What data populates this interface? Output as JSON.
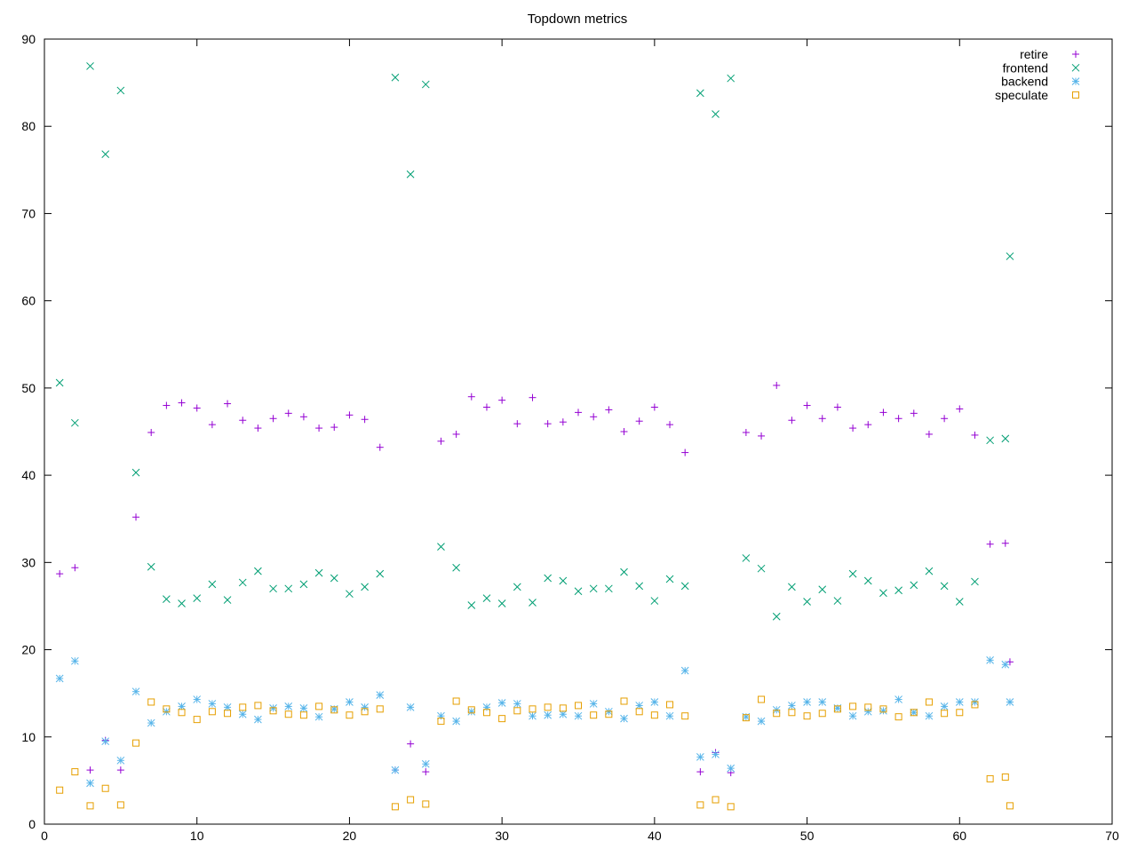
{
  "chart_data": {
    "type": "scatter",
    "title": "Topdown metrics",
    "xlabel": "",
    "ylabel": "",
    "xlim": [
      0,
      70
    ],
    "ylim": [
      0,
      90
    ],
    "xticks": [
      0,
      10,
      20,
      30,
      40,
      50,
      60,
      70
    ],
    "yticks": [
      0,
      10,
      20,
      30,
      40,
      50,
      60,
      70,
      80,
      90
    ],
    "grid": false,
    "legend_position": "top-right",
    "series": [
      {
        "name": "retire",
        "color": "#9400d3",
        "marker": "plus",
        "points": [
          [
            1,
            28.7
          ],
          [
            2,
            29.4
          ],
          [
            3,
            6.2
          ],
          [
            4,
            9.6
          ],
          [
            5,
            6.2
          ],
          [
            6,
            35.2
          ],
          [
            7,
            44.9
          ],
          [
            8,
            48.0
          ],
          [
            9,
            48.3
          ],
          [
            10,
            47.7
          ],
          [
            11,
            45.8
          ],
          [
            12,
            48.2
          ],
          [
            13,
            46.3
          ],
          [
            14,
            45.4
          ],
          [
            15,
            46.5
          ],
          [
            16,
            47.1
          ],
          [
            17,
            46.7
          ],
          [
            18,
            45.4
          ],
          [
            19,
            45.5
          ],
          [
            20,
            46.9
          ],
          [
            21,
            46.4
          ],
          [
            22,
            43.2
          ],
          [
            23,
            6.2
          ],
          [
            24,
            9.2
          ],
          [
            25,
            6.0
          ],
          [
            26,
            43.9
          ],
          [
            27,
            44.7
          ],
          [
            28,
            49.0
          ],
          [
            29,
            47.8
          ],
          [
            30,
            48.6
          ],
          [
            31,
            45.9
          ],
          [
            32,
            48.9
          ],
          [
            33,
            45.9
          ],
          [
            34,
            46.1
          ],
          [
            35,
            47.2
          ],
          [
            36,
            46.7
          ],
          [
            37,
            47.5
          ],
          [
            38,
            45.0
          ],
          [
            39,
            46.2
          ],
          [
            40,
            47.8
          ],
          [
            41,
            45.8
          ],
          [
            42,
            42.6
          ],
          [
            43,
            6.0
          ],
          [
            44,
            8.2
          ],
          [
            45,
            5.9
          ],
          [
            46,
            44.9
          ],
          [
            47,
            44.5
          ],
          [
            48,
            50.3
          ],
          [
            49,
            46.3
          ],
          [
            50,
            48.0
          ],
          [
            51,
            46.5
          ],
          [
            52,
            47.8
          ],
          [
            53,
            45.4
          ],
          [
            54,
            45.8
          ],
          [
            55,
            47.2
          ],
          [
            56,
            46.5
          ],
          [
            57,
            47.1
          ],
          [
            58,
            44.7
          ],
          [
            59,
            46.5
          ],
          [
            60,
            47.6
          ],
          [
            61,
            44.6
          ],
          [
            62,
            32.1
          ],
          [
            63,
            32.2
          ],
          [
            63.3,
            18.6
          ]
        ]
      },
      {
        "name": "frontend",
        "color": "#009e73",
        "marker": "cross",
        "points": [
          [
            1,
            50.6
          ],
          [
            2,
            46.0
          ],
          [
            3,
            86.9
          ],
          [
            4,
            76.8
          ],
          [
            5,
            84.1
          ],
          [
            6,
            40.3
          ],
          [
            7,
            29.5
          ],
          [
            8,
            25.8
          ],
          [
            9,
            25.3
          ],
          [
            10,
            25.9
          ],
          [
            11,
            27.5
          ],
          [
            12,
            25.7
          ],
          [
            13,
            27.7
          ],
          [
            14,
            29.0
          ],
          [
            15,
            27.0
          ],
          [
            16,
            27.0
          ],
          [
            17,
            27.5
          ],
          [
            18,
            28.8
          ],
          [
            19,
            28.2
          ],
          [
            20,
            26.4
          ],
          [
            21,
            27.2
          ],
          [
            22,
            28.7
          ],
          [
            23,
            85.6
          ],
          [
            24,
            74.5
          ],
          [
            25,
            84.8
          ],
          [
            26,
            31.8
          ],
          [
            27,
            29.4
          ],
          [
            28,
            25.1
          ],
          [
            29,
            25.9
          ],
          [
            30,
            25.3
          ],
          [
            31,
            27.2
          ],
          [
            32,
            25.4
          ],
          [
            33,
            28.2
          ],
          [
            34,
            27.9
          ],
          [
            35,
            26.7
          ],
          [
            36,
            27.0
          ],
          [
            37,
            27.0
          ],
          [
            38,
            28.9
          ],
          [
            39,
            27.3
          ],
          [
            40,
            25.6
          ],
          [
            41,
            28.1
          ],
          [
            42,
            27.3
          ],
          [
            43,
            83.8
          ],
          [
            44,
            81.4
          ],
          [
            45,
            85.5
          ],
          [
            46,
            30.5
          ],
          [
            47,
            29.3
          ],
          [
            48,
            23.8
          ],
          [
            49,
            27.2
          ],
          [
            50,
            25.5
          ],
          [
            51,
            26.9
          ],
          [
            52,
            25.6
          ],
          [
            53,
            28.7
          ],
          [
            54,
            27.9
          ],
          [
            55,
            26.5
          ],
          [
            56,
            26.8
          ],
          [
            57,
            27.4
          ],
          [
            58,
            29.0
          ],
          [
            59,
            27.3
          ],
          [
            60,
            25.5
          ],
          [
            61,
            27.8
          ],
          [
            62,
            44.0
          ],
          [
            63,
            44.2
          ],
          [
            63.3,
            65.1
          ]
        ]
      },
      {
        "name": "backend",
        "color": "#56b4e9",
        "marker": "star",
        "points": [
          [
            1,
            16.7
          ],
          [
            2,
            18.7
          ],
          [
            3,
            4.7
          ],
          [
            4,
            9.5
          ],
          [
            5,
            7.3
          ],
          [
            6,
            15.2
          ],
          [
            7,
            11.6
          ],
          [
            8,
            12.9
          ],
          [
            9,
            13.5
          ],
          [
            10,
            14.3
          ],
          [
            11,
            13.8
          ],
          [
            12,
            13.4
          ],
          [
            13,
            12.6
          ],
          [
            14,
            12.0
          ],
          [
            15,
            13.3
          ],
          [
            16,
            13.5
          ],
          [
            17,
            13.3
          ],
          [
            18,
            12.3
          ],
          [
            19,
            13.2
          ],
          [
            20,
            14.0
          ],
          [
            21,
            13.4
          ],
          [
            22,
            14.8
          ],
          [
            23,
            6.2
          ],
          [
            24,
            13.4
          ],
          [
            25,
            6.9
          ],
          [
            26,
            12.4
          ],
          [
            27,
            11.8
          ],
          [
            28,
            12.9
          ],
          [
            29,
            13.4
          ],
          [
            30,
            13.9
          ],
          [
            31,
            13.8
          ],
          [
            32,
            12.4
          ],
          [
            33,
            12.5
          ],
          [
            34,
            12.6
          ],
          [
            35,
            12.4
          ],
          [
            36,
            13.8
          ],
          [
            37,
            12.9
          ],
          [
            38,
            12.1
          ],
          [
            39,
            13.6
          ],
          [
            40,
            14.0
          ],
          [
            41,
            12.4
          ],
          [
            42,
            17.6
          ],
          [
            43,
            7.7
          ],
          [
            44,
            8.0
          ],
          [
            45,
            6.4
          ],
          [
            46,
            12.3
          ],
          [
            47,
            11.8
          ],
          [
            48,
            13.1
          ],
          [
            49,
            13.6
          ],
          [
            50,
            14.0
          ],
          [
            51,
            14.0
          ],
          [
            52,
            13.3
          ],
          [
            53,
            12.4
          ],
          [
            54,
            12.9
          ],
          [
            55,
            13.0
          ],
          [
            56,
            14.3
          ],
          [
            57,
            12.8
          ],
          [
            58,
            12.4
          ],
          [
            59,
            13.5
          ],
          [
            60,
            14.0
          ],
          [
            61,
            14.0
          ],
          [
            62,
            18.8
          ],
          [
            63,
            18.3
          ],
          [
            63.3,
            14.0
          ]
        ]
      },
      {
        "name": "speculate",
        "color": "#e69f00",
        "marker": "square",
        "points": [
          [
            1,
            3.9
          ],
          [
            2,
            6.0
          ],
          [
            3,
            2.1
          ],
          [
            4,
            4.1
          ],
          [
            5,
            2.2
          ],
          [
            6,
            9.3
          ],
          [
            7,
            14.0
          ],
          [
            8,
            13.2
          ],
          [
            9,
            12.8
          ],
          [
            10,
            12.0
          ],
          [
            11,
            12.9
          ],
          [
            12,
            12.7
          ],
          [
            13,
            13.4
          ],
          [
            14,
            13.6
          ],
          [
            15,
            13.0
          ],
          [
            16,
            12.6
          ],
          [
            17,
            12.5
          ],
          [
            18,
            13.5
          ],
          [
            19,
            13.1
          ],
          [
            20,
            12.5
          ],
          [
            21,
            12.9
          ],
          [
            22,
            13.2
          ],
          [
            23,
            2.0
          ],
          [
            24,
            2.8
          ],
          [
            25,
            2.3
          ],
          [
            26,
            11.8
          ],
          [
            27,
            14.1
          ],
          [
            28,
            13.1
          ],
          [
            29,
            12.8
          ],
          [
            30,
            12.1
          ],
          [
            31,
            13.0
          ],
          [
            32,
            13.2
          ],
          [
            33,
            13.4
          ],
          [
            34,
            13.3
          ],
          [
            35,
            13.6
          ],
          [
            36,
            12.5
          ],
          [
            37,
            12.6
          ],
          [
            38,
            14.1
          ],
          [
            39,
            12.9
          ],
          [
            40,
            12.5
          ],
          [
            41,
            13.7
          ],
          [
            42,
            12.4
          ],
          [
            43,
            2.2
          ],
          [
            44,
            2.8
          ],
          [
            45,
            2.0
          ],
          [
            46,
            12.2
          ],
          [
            47,
            14.3
          ],
          [
            48,
            12.7
          ],
          [
            49,
            12.8
          ],
          [
            50,
            12.4
          ],
          [
            51,
            12.7
          ],
          [
            52,
            13.2
          ],
          [
            53,
            13.5
          ],
          [
            54,
            13.4
          ],
          [
            55,
            13.2
          ],
          [
            56,
            12.3
          ],
          [
            57,
            12.8
          ],
          [
            58,
            14.0
          ],
          [
            59,
            12.7
          ],
          [
            60,
            12.8
          ],
          [
            61,
            13.7
          ],
          [
            62,
            5.2
          ],
          [
            63,
            5.4
          ],
          [
            63.3,
            2.1
          ]
        ]
      }
    ]
  }
}
